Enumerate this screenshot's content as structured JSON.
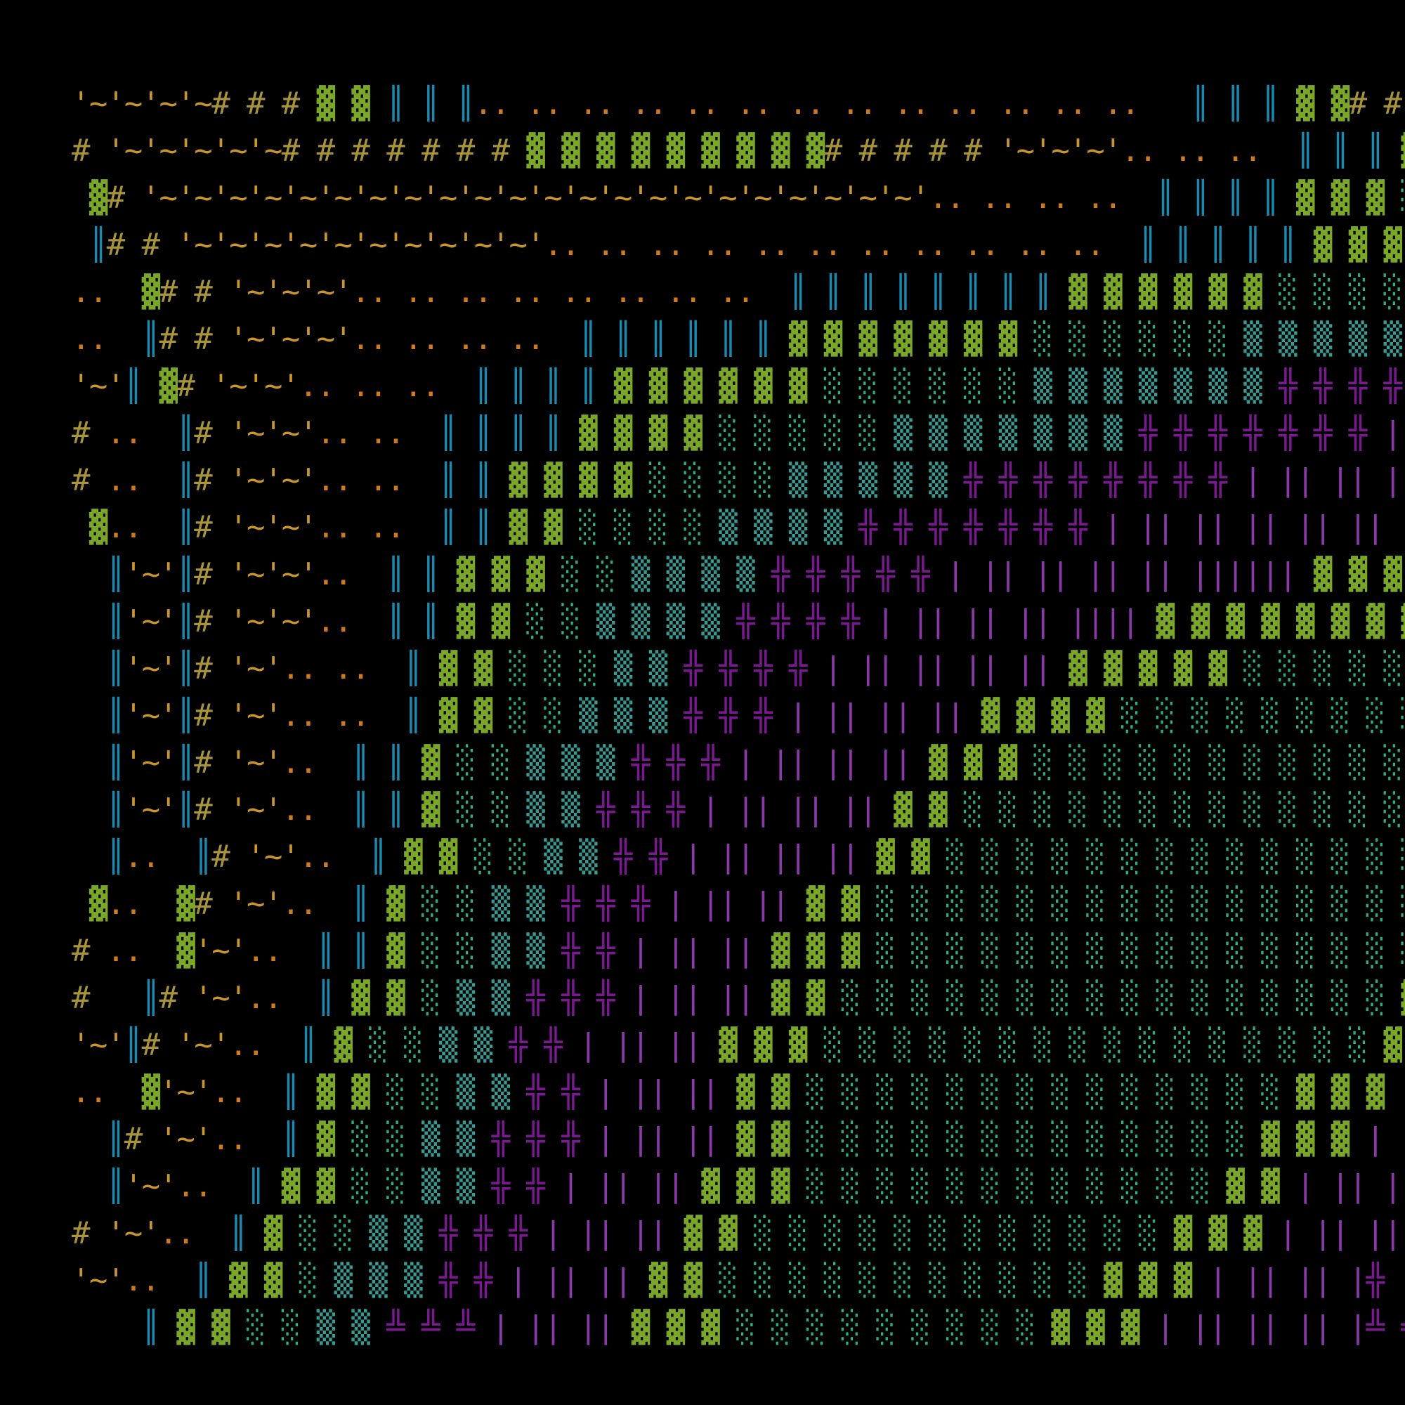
{
  "screen": {
    "background": "#000000",
    "palette": {
      "'": "#c9962e",
      "~": "#c9962e",
      "#": "#a8943a",
      ".": "#d07a1e",
      ":": "#b83a9a",
      "▓": "#7aa62a",
      "║": "#1a8ab0",
      "░": "#2fae86",
      "▒": "#3a9a92",
      "╬": "#7a1a90",
      "╩": "#7a1a90",
      "|": "#8a3aa8"
    },
    "rows": [
      "'~'~'~'~# # # ▓ ▓ ║ ║ ║.. .. .. .. .. .. .. .. .. .. .. .. ..   ║ ║ ║ ▓ ▓# # '~'~'.. ..",
      "# '~'~'~'~'~# # # # # # # ▓ ▓ ▓ ▓ ▓ ▓ ▓ ▓ ▓# # # # # '~'~'~'.. .. ..  ║ ║ ║ ▓",
      " ▓# '~'~'~'~'~'~'~'~'~'~'~'~'~'~'~'~'~'~'~'~'~'~'.. .. .. ..  ║ ║ ║ ║ ▓ ▓ ▓ ░",
      " ║# # '~'~'~'~'~'~'~'~'~'~'.. .. .. .. .. .. .. .. .. .. ..  ║ ║ ║ ║ ║ ▓ ▓ ▓ ▓ ░ ░ ░ ░",
      "..  ▓# # '~'~'~'.. .. .. .. .. .. .. ..  ║ ║ ║ ║ ║ ║ ║ ║ ▓ ▓ ▓ ▓ ▓ ▓ ░ ░ ░ ░ ░ ▒ ▒ ▒",
      "..  ║# # '~'~'~'.. .. .. ..  ║ ║ ║ ║ ║ ║ ▓ ▓ ▓ ▓ ▓ ▓ ▓ ░ ░ ░ ░ ░ ░ ▒ ▒ ▒ ▒ ▒ ▒ :",
      "'~'║ ▓# '~'~'.. .. ..  ║ ║ ║ ║ ▓ ▓ ▓ ▓ ▓ ▓ ░ ░ ░ ░ ░ ░ ▒ ▒ ▒ ▒ ▒ ▒ ▒ ╬ ╬ ╬ ╬ :",
      "# ..  ║# '~'~'.. ..  ║ ║ ║ ║ ▓ ▓ ▓ ▓ ░ ░ ░ ░ ░ ▒ ▒ ▒ ▒ ▒ ▒ ▒ ╬ ╬ ╬ ╬ ╬ ╬ ╬ | ||",
      "# ..  ║# '~'~'.. ..  ║ ║ ▓ ▓ ▓ ▓ ░ ░ ░ ░ ▒ ▒ ▒ ▒ ▒ ╬ ╬ ╬ ╬ ╬ ╬ ╬ ╬ | || || || ||",
      " ▓..  ║# '~'~'.. ..  ║ ║ ▓ ▓ ░ ░ ░ ░ ▒ ▒ ▒ ▒ ╬ ╬ ╬ ╬ ╬ ╬ ╬ | || || || || || || ||",
      "  ║'~'║# '~'~'..  ║ ║ ▓ ▓ ▓ ░ ░ ▒ ▒ ▒ ▒ ╬ ╬ ╬ ╬ ╬ | || || || || |||||| ▓ ▓ ▓ ▓",
      "  ║'~'║# '~'~'..  ║ ║ ▓ ▓ ░ ░ ▒ ▒ ▒ ▒ ╬ ╬ ╬ ╬ | || || || |||| ▓ ▓ ▓ ▓ ▓ ▓ ▓ ▓",
      "  ║'~'║# '~'.. ..  ║ ▓ ▓ ░ ░ ░ ▒ ▒ ╬ ╬ ╬ ╬ | || || || || ▓ ▓ ▓ ▓ ▓ ░ ░ ░ ░ ░ ░",
      "  ║'~'║# '~'.. ..  ║ ▓ ▓ ░ ░ ▒ ▒ ▒ ╬ ╬ ╬ | || || || ▓ ▓ ▓ ▓ ░ ░ ░ ░ ░ ░ ░ ░ ░",
      "  ║'~'║# '~'..  ║ ║ ▓ ░ ░ ▒ ▒ ▒ ╬ ╬ ╬ | || || || ▓ ▓ ▓ ░ ░ ░ ░ ░ ░ ░ ░ ░ ░ ░",
      "  ║'~'║# '~'..  ║ ║ ▓ ░ ░ ▒ ▒ ╬ ╬ ╬ | || || || ▓ ▓ ░ ░ ░ ░ ░ ░ ░ ░ ░ ░ ░ ░ ░",
      "  ║..  ║# '~'..  ║ ▓ ▓ ░ ░ ▒ ▒ ╬ ╬ | || || || ▓ ▓ ░ ░ ░ ░ ░ ░ ░ ░ ░ ░ ░ ░ ░ ░",
      " ▓..  ▓# '~'..  ║ ▓ ░ ░ ▒ ▒ ╬ ╬ ╬ | || || ▓ ▓ ░ ░ ░ ░ ░ ░ ░ ░ ░ ░ ░ ░ ░ ░ ░ ░",
      "# ..  ▓'~'..  ║ ║ ▓ ░ ░ ▒ ▒ ╬ ╬ | || || ▓ ▓ ▓ ░ ░ ░ ░ ░ ░ ░ ░ ░ ░ ░ ░ ░ ░ ░ ░",
      "#   ║# '~'..  ║ ▓ ▓ ░ ▒ ▒ ╬ ╬ ╬ | || || ▓ ▓ ░ ░ ░ ░ ░ ░ ░ ░ ░ ░ ░ ░ ░ ░ ░ ░ ▓",
      "'~'║# '~'..  ║ ▓ ░ ░ ▒ ▒ ╬ ╬ | || || ▓ ▓ ▓ ░ ░ ░ ░ ░ ░ ░ ░ ░ ░ ░ ░ ░ ░ ░ ░ ▓ ▓",
      "..  ▓'~'..  ║ ▓ ▓ ░ ░ ▒ ▒ ╬ ╬ | || || ▓ ▓ ░ ░ ░ ░ ░ ░ ░ ░ ░ ░ ░ ░ ░ ░ ▓ ▓ ▓ |",
      "  ║# '~'..  ║ ▓ ░ ░ ▒ ▒ ╬ ╬ ╬ | || || ▓ ▓ ░ ░ ░ ░ ░ ░ ░ ░ ░ ░ ░ ░ ░ ▓ ▓ ▓ | ||",
      "  ║'~'..  ║ ▓ ▓ ░ ░ ▒ ▒ ╬ ╬ | || || ▓ ▓ ▓ ░ ░ ░ ░ ░ ░ ░ ░ ░ ░ ░ ░ ▓ ▓ | || ||",
      "# '~'..  ║ ▓ ░ ░ ▒ ▒ ╬ ╬ ╬ | || || ▓ ▓ ░ ░ ░ ░ ░ ░ ░ ░ ░ ░ ░ ░ ▓ ▓ ▓ | || || |:",
      "'~'..  ║ ▓ ▓ ░ ▒ ▒ ▒ ╬ ╬ | || || ▓ ▓ ░ ░ ░ ░ ░ ░ ░ ░ ░ ░ ░ ▓ ▓ ▓ | || || |╬ :",
      "    ║ ▓ ▓ ░ ░ ▒ ▒ ╩ ╩ ╩ | || || ▓ ▓ ▓ ░ ░ ░ ░ ░ ░ ░ ░ ░ ▓ ▓ ▓ | || || || |╩ ╩ :"
    ]
  }
}
